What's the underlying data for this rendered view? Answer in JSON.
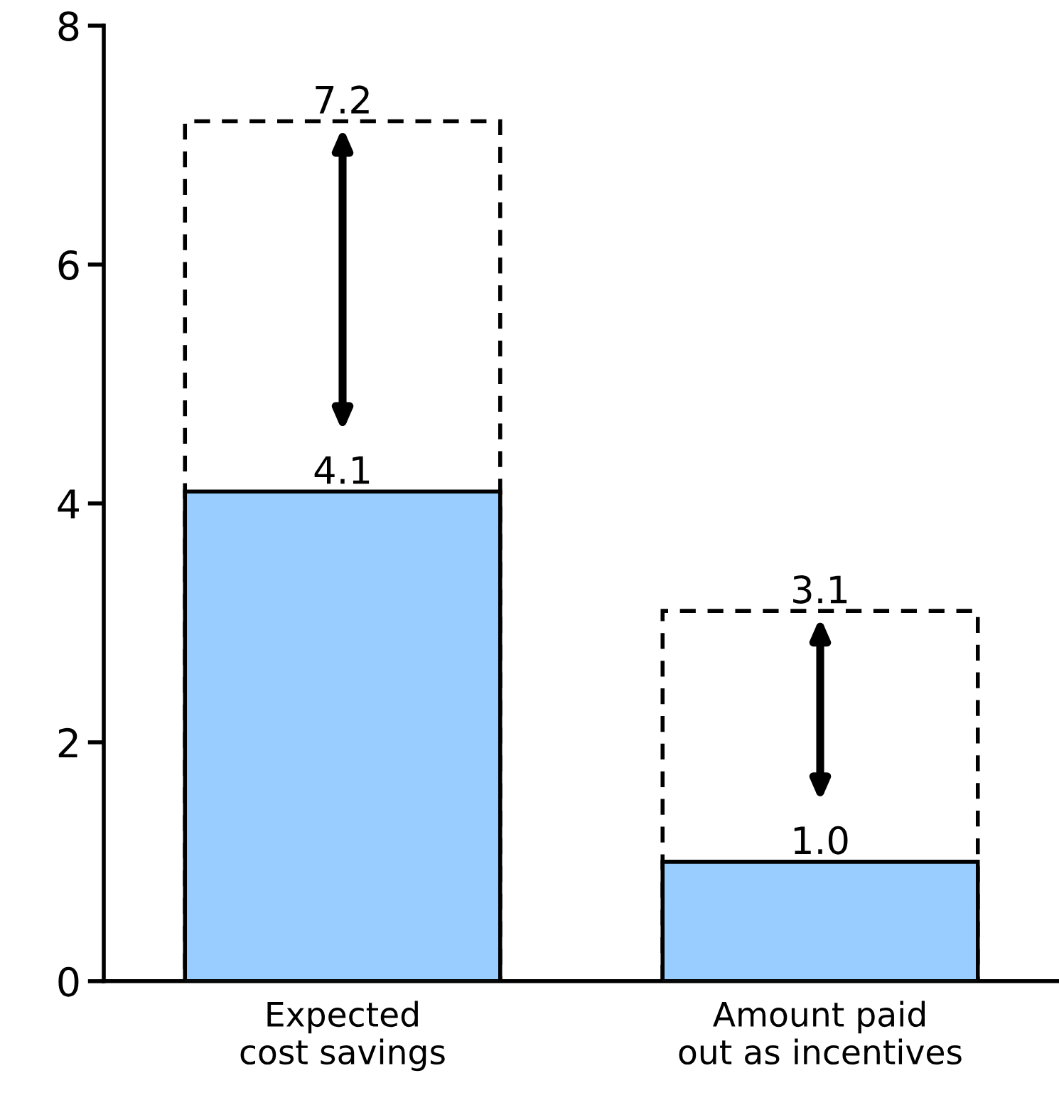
{
  "chart_data": {
    "type": "bar",
    "categories": [
      "Expected\ncost savings",
      "Amount paid\nout as incentives"
    ],
    "series": [
      {
        "color": "#000000",
        "line_style": "dashed",
        "values": [
          7.2,
          3.1
        ],
        "value_labels": [
          "7.2",
          "3.1"
        ]
      },
      {
        "color": "#99ccff",
        "values": [
          4.1,
          1.0
        ],
        "value_labels": [
          "4.1",
          "1.0"
        ]
      }
    ],
    "ylim": [
      0,
      8
    ],
    "yticks": [
      0,
      2,
      4,
      6,
      8
    ],
    "grid": false
  }
}
